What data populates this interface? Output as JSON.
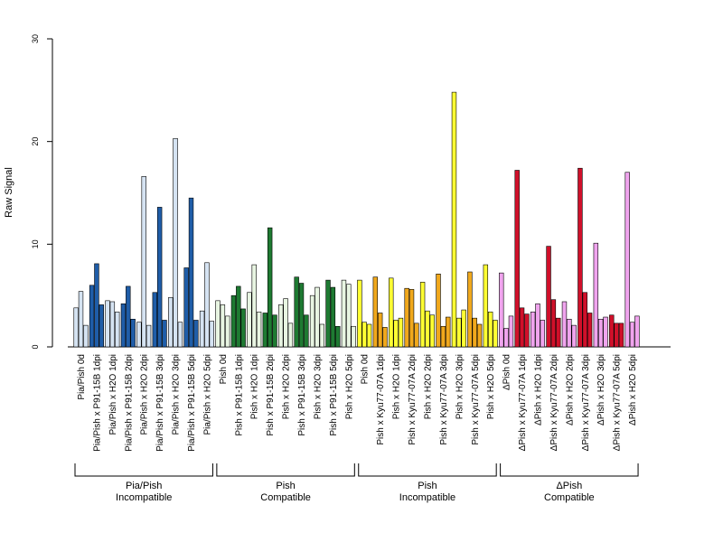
{
  "chart_data": {
    "type": "bar",
    "title": "",
    "xlabel": "",
    "ylabel": "Raw Signal",
    "ylim": [
      0,
      30
    ],
    "yticks": [
      0,
      10,
      20,
      30
    ],
    "grid": false,
    "legend": "none",
    "categories": [
      "Pia/Pish 0d",
      "Pia/Pish x P91-15B 1dpi",
      "Pia/Pish x H2O 1dpi",
      "Pia/Pish x P91-15B 2dpi",
      "Pia/Pish x H2O 2dpi",
      "Pia/Pish x P91-15B 3dpi",
      "Pia/Pish x H2O 3dpi",
      "Pia/Pish x P91-15B 5dpi",
      "Pia/Pish x H2O 5dpi",
      "Pish 0d",
      "Pish x P91-15B 1dpi",
      "Pish x H2O 1dpi",
      "Pish x P91-15B 2dpi",
      "Pish x H2O 2dpi",
      "Pish x P91-15B 3dpi",
      "Pish x H2O 3dpi",
      "Pish x P91-15B 5dpi",
      "Pish x H2O 5dpi",
      "Pish 0d",
      "Pish x Kyu77-07A 1dpi",
      "Pish x H2O 1dpi",
      "Pish x Kyu77-07A 2dpi",
      "Pish x H2O 2dpi",
      "Pish x Kyu77-07A 3dpi",
      "Pish x H2O 3dpi",
      "Pish x Kyu77-07A 5dpi",
      "Pish x H2O 5dpi",
      "ΔPish 0d",
      "ΔPish x Kyu77-07A 1dpi",
      "ΔPish x H2O 1dpi",
      "ΔPish x Kyu77-07A 2dpi",
      "ΔPish x H2O 2dpi",
      "ΔPish x Kyu77-07A 3dpi",
      "ΔPish x H2O 3dpi",
      "ΔPish x Kyu77-07A 5dpi",
      "ΔPish x H2O 5dpi"
    ],
    "bar_colors": [
      "light",
      "dark",
      "light",
      "dark",
      "light",
      "dark",
      "light",
      "dark",
      "light",
      "light",
      "dark",
      "light",
      "dark",
      "light",
      "dark",
      "light",
      "dark",
      "light",
      "light",
      "dark",
      "light",
      "dark",
      "light",
      "dark",
      "light",
      "dark",
      "light",
      "light",
      "dark",
      "light",
      "dark",
      "light",
      "dark",
      "light",
      "dark",
      "light"
    ],
    "replicate_values": [
      [
        3.8,
        5.4,
        2.1
      ],
      [
        6.0,
        8.1,
        4.1
      ],
      [
        4.5,
        4.4,
        3.4
      ],
      [
        4.2,
        5.9,
        2.7
      ],
      [
        2.4,
        16.6,
        2.1
      ],
      [
        5.3,
        13.6,
        2.6
      ],
      [
        4.8,
        20.3,
        2.4
      ],
      [
        7.7,
        14.5,
        2.6
      ],
      [
        3.5,
        8.2,
        2.5
      ],
      [
        4.5,
        4.1,
        3.0
      ],
      [
        5.0,
        5.9,
        3.7
      ],
      [
        5.3,
        8.0,
        3.4
      ],
      [
        3.3,
        11.6,
        3.1
      ],
      [
        4.1,
        4.7,
        2.3
      ],
      [
        6.8,
        6.2,
        3.1
      ],
      [
        5.0,
        5.8,
        2.2
      ],
      [
        6.5,
        5.8,
        2.0
      ],
      [
        6.5,
        6.1,
        2.0
      ],
      [
        6.5,
        2.4,
        2.2
      ],
      [
        6.8,
        3.3,
        1.9
      ],
      [
        6.7,
        2.6,
        2.8
      ],
      [
        5.7,
        5.6,
        2.3
      ],
      [
        6.3,
        3.5,
        3.1
      ],
      [
        7.1,
        2.0,
        2.9
      ],
      [
        24.8,
        2.8,
        3.6
      ],
      [
        7.3,
        2.8,
        2.2
      ],
      [
        8.0,
        3.4,
        2.6
      ],
      [
        7.2,
        1.8,
        3.0
      ],
      [
        17.2,
        3.8,
        3.2
      ],
      [
        3.4,
        4.2,
        2.6
      ],
      [
        9.8,
        4.6,
        2.8
      ],
      [
        4.4,
        2.7,
        2.1
      ],
      [
        17.4,
        5.3,
        3.3
      ],
      [
        10.1,
        2.7,
        2.9
      ],
      [
        3.1,
        2.3,
        2.3
      ],
      [
        17.0,
        2.4,
        3.0
      ]
    ],
    "groups": [
      {
        "line1": "Pia/Pish",
        "line2": "Incompatible",
        "start": 0,
        "end": 8,
        "light_color": "#d5e3f2",
        "dark_color": "#1f5da8"
      },
      {
        "line1": "Pish",
        "line2": "Compatible",
        "start": 9,
        "end": 17,
        "light_color": "#e8f5e2",
        "dark_color": "#1e7a32"
      },
      {
        "line1": "Pish",
        "line2": "Incompatible",
        "start": 18,
        "end": 26,
        "light_color": "#ffff33",
        "dark_color": "#f0a81c"
      },
      {
        "line1": "ΔPish",
        "line2": "Compatible",
        "start": 27,
        "end": 35,
        "light_color": "#f0a4ee",
        "dark_color": "#d0102a"
      }
    ]
  }
}
